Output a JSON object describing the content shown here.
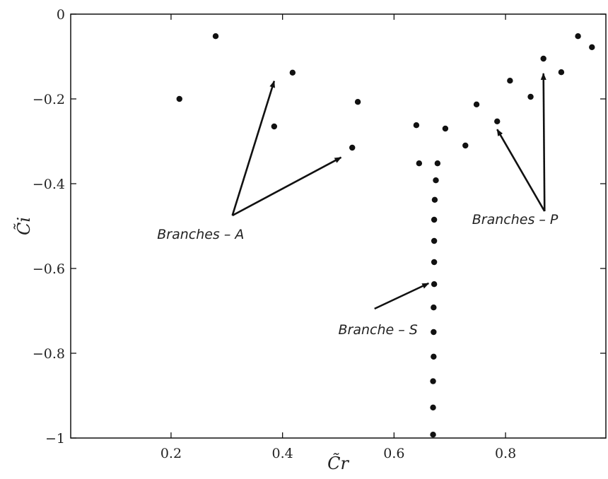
{
  "chart_data": {
    "type": "scatter",
    "title": "",
    "xlabel": "C̃r",
    "ylabel": "C̃i",
    "xlim": [
      0.02,
      0.98
    ],
    "ylim": [
      -1,
      0
    ],
    "grid": false,
    "x_ticks": [
      0.2,
      0.4,
      0.6,
      0.8
    ],
    "x_tick_labels": [
      "0.2",
      "0.4",
      "0.6",
      "0.8"
    ],
    "y_ticks": [
      0,
      -0.2,
      -0.4,
      -0.6,
      -0.8,
      -1
    ],
    "y_tick_labels": [
      "0",
      "−0.2",
      "−0.4",
      "−0.6",
      "−0.8",
      "−1"
    ],
    "points": [
      {
        "x": 0.215,
        "y": -0.2
      },
      {
        "x": 0.28,
        "y": -0.052
      },
      {
        "x": 0.385,
        "y": -0.265
      },
      {
        "x": 0.418,
        "y": -0.138
      },
      {
        "x": 0.525,
        "y": -0.315
      },
      {
        "x": 0.535,
        "y": -0.207
      },
      {
        "x": 0.64,
        "y": -0.262
      },
      {
        "x": 0.645,
        "y": -0.352
      },
      {
        "x": 0.692,
        "y": -0.27
      },
      {
        "x": 0.728,
        "y": -0.31
      },
      {
        "x": 0.748,
        "y": -0.213
      },
      {
        "x": 0.785,
        "y": -0.253
      },
      {
        "x": 0.808,
        "y": -0.157
      },
      {
        "x": 0.845,
        "y": -0.195
      },
      {
        "x": 0.868,
        "y": -0.105
      },
      {
        "x": 0.9,
        "y": -0.137
      },
      {
        "x": 0.93,
        "y": -0.052
      },
      {
        "x": 0.955,
        "y": -0.078
      },
      {
        "x": 0.678,
        "y": -0.352
      },
      {
        "x": 0.675,
        "y": -0.392
      },
      {
        "x": 0.673,
        "y": -0.438
      },
      {
        "x": 0.672,
        "y": -0.485
      },
      {
        "x": 0.672,
        "y": -0.535
      },
      {
        "x": 0.672,
        "y": -0.585
      },
      {
        "x": 0.672,
        "y": -0.637
      },
      {
        "x": 0.671,
        "y": -0.692
      },
      {
        "x": 0.671,
        "y": -0.75
      },
      {
        "x": 0.671,
        "y": -0.808
      },
      {
        "x": 0.67,
        "y": -0.866
      },
      {
        "x": 0.67,
        "y": -0.928
      },
      {
        "x": 0.67,
        "y": -0.992
      }
    ],
    "annotations": [
      {
        "text": "Branches – A",
        "anchor": [
          0.31,
          -0.475
        ],
        "label_at": [
          0.175,
          -0.53
        ],
        "arrows_to": [
          [
            0.385,
            -0.158
          ],
          [
            0.505,
            -0.338
          ]
        ]
      },
      {
        "text": "Branches – P",
        "anchor": [
          0.87,
          -0.465
        ],
        "label_at": [
          0.74,
          -0.495
        ],
        "arrows_to": [
          [
            0.785,
            -0.272
          ],
          [
            0.868,
            -0.14
          ]
        ]
      },
      {
        "text": "Branche – S",
        "anchor": [
          0.565,
          -0.695
        ],
        "label_at": [
          0.5,
          -0.755
        ],
        "arrows_to": [
          [
            0.662,
            -0.635
          ]
        ]
      }
    ]
  }
}
